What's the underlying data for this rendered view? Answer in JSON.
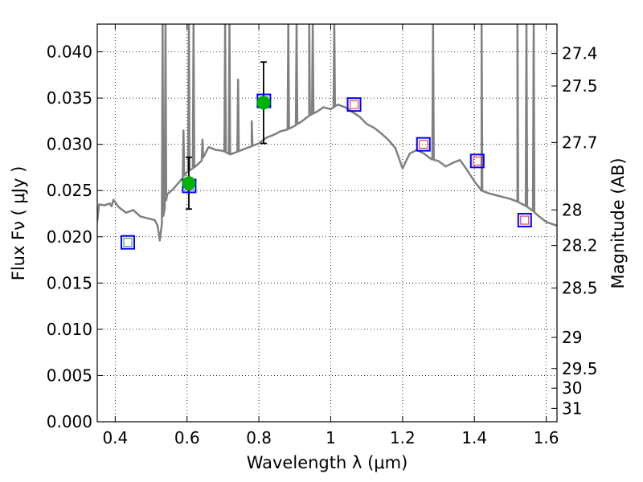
{
  "chart_data": {
    "type": "line",
    "xlabel": "Wavelength  λ (μm)",
    "ylabel": "Flux  Fν  ( μJy )",
    "y2label": "Magnitude (AB)",
    "xlim": [
      0.35,
      1.63
    ],
    "ylim": [
      0.0,
      0.043
    ],
    "grid": true,
    "x_ticks": [
      {
        "value": 0.4,
        "label": "0.4"
      },
      {
        "value": 0.6,
        "label": "0.6"
      },
      {
        "value": 0.8,
        "label": "0.8"
      },
      {
        "value": 1.0,
        "label": "1"
      },
      {
        "value": 1.2,
        "label": "1.2"
      },
      {
        "value": 1.4,
        "label": "1.4"
      },
      {
        "value": 1.6,
        "label": "1.6"
      }
    ],
    "y_ticks": [
      {
        "value": 0.0,
        "label": "0.000"
      },
      {
        "value": 0.005,
        "label": "0.005"
      },
      {
        "value": 0.01,
        "label": "0.010"
      },
      {
        "value": 0.015,
        "label": "0.015"
      },
      {
        "value": 0.02,
        "label": "0.020"
      },
      {
        "value": 0.025,
        "label": "0.025"
      },
      {
        "value": 0.03,
        "label": "0.030"
      },
      {
        "value": 0.035,
        "label": "0.035"
      },
      {
        "value": 0.04,
        "label": "0.040"
      }
    ],
    "y2_ticks": [
      {
        "value": 27.4,
        "label": "27.4"
      },
      {
        "value": 27.5,
        "label": "27.5"
      },
      {
        "value": 27.7,
        "label": "27.7"
      },
      {
        "value": 28.0,
        "label": "28"
      },
      {
        "value": 28.2,
        "label": "28.2"
      },
      {
        "value": 28.5,
        "label": "28.5"
      },
      {
        "value": 29.0,
        "label": "29"
      },
      {
        "value": 29.5,
        "label": "29.5"
      },
      {
        "value": 30.0,
        "label": "30"
      },
      {
        "value": 31.0,
        "label": "31"
      }
    ],
    "series": [
      {
        "role": "sed-model",
        "style": "line",
        "color": "#808080",
        "continuum": [
          [
            0.35,
            0.0217
          ],
          [
            0.355,
            0.0235
          ],
          [
            0.37,
            0.0234
          ],
          [
            0.385,
            0.0236
          ],
          [
            0.39,
            0.0233
          ],
          [
            0.395,
            0.024
          ],
          [
            0.41,
            0.0232
          ],
          [
            0.43,
            0.0226
          ],
          [
            0.45,
            0.0229
          ],
          [
            0.47,
            0.0222
          ],
          [
            0.49,
            0.022
          ],
          [
            0.51,
            0.0218
          ],
          [
            0.518,
            0.0212
          ],
          [
            0.524,
            0.0196
          ],
          [
            0.53,
            0.0214
          ],
          [
            0.545,
            0.0246
          ],
          [
            0.56,
            0.0251
          ],
          [
            0.58,
            0.026
          ],
          [
            0.6,
            0.027
          ],
          [
            0.62,
            0.0275
          ],
          [
            0.64,
            0.0282
          ],
          [
            0.66,
            0.0297
          ],
          [
            0.68,
            0.0294
          ],
          [
            0.7,
            0.0293
          ],
          [
            0.72,
            0.0289
          ],
          [
            0.74,
            0.0292
          ],
          [
            0.76,
            0.0295
          ],
          [
            0.78,
            0.0298
          ],
          [
            0.8,
            0.0301
          ],
          [
            0.82,
            0.0307
          ],
          [
            0.84,
            0.031
          ],
          [
            0.86,
            0.0314
          ],
          [
            0.88,
            0.0316
          ],
          [
            0.9,
            0.032
          ],
          [
            0.92,
            0.0325
          ],
          [
            0.94,
            0.0331
          ],
          [
            0.96,
            0.0335
          ],
          [
            0.98,
            0.034
          ],
          [
            1.0,
            0.0338
          ],
          [
            1.02,
            0.0343
          ],
          [
            1.04,
            0.034
          ],
          [
            1.06,
            0.0335
          ],
          [
            1.08,
            0.033
          ],
          [
            1.1,
            0.0322
          ],
          [
            1.12,
            0.0318
          ],
          [
            1.14,
            0.0312
          ],
          [
            1.16,
            0.0305
          ],
          [
            1.18,
            0.0296
          ],
          [
            1.19,
            0.0285
          ],
          [
            1.2,
            0.0274
          ],
          [
            1.22,
            0.029
          ],
          [
            1.24,
            0.0294
          ],
          [
            1.26,
            0.029
          ],
          [
            1.28,
            0.0284
          ],
          [
            1.3,
            0.0282
          ],
          [
            1.32,
            0.0276
          ],
          [
            1.34,
            0.028
          ],
          [
            1.36,
            0.0283
          ],
          [
            1.38,
            0.0272
          ],
          [
            1.4,
            0.026
          ],
          [
            1.42,
            0.025
          ],
          [
            1.44,
            0.0247
          ],
          [
            1.46,
            0.0245
          ],
          [
            1.48,
            0.0243
          ],
          [
            1.5,
            0.0241
          ],
          [
            1.52,
            0.0238
          ],
          [
            1.54,
            0.0234
          ],
          [
            1.56,
            0.0229
          ],
          [
            1.58,
            0.0222
          ],
          [
            1.6,
            0.0216
          ],
          [
            1.63,
            0.0212
          ]
        ],
        "emission_lines": [
          {
            "x": 0.532,
            "peak": 0.043
          },
          {
            "x": 0.54,
            "peak": 0.043
          },
          {
            "x": 0.59,
            "peak": 0.0315
          },
          {
            "x": 0.605,
            "peak": 0.043
          },
          {
            "x": 0.618,
            "peak": 0.043
          },
          {
            "x": 0.643,
            "peak": 0.0305
          },
          {
            "x": 0.706,
            "peak": 0.043
          },
          {
            "x": 0.718,
            "peak": 0.043
          },
          {
            "x": 0.742,
            "peak": 0.037
          },
          {
            "x": 0.78,
            "peak": 0.0325
          },
          {
            "x": 0.882,
            "peak": 0.043
          },
          {
            "x": 0.905,
            "peak": 0.043
          },
          {
            "x": 0.94,
            "peak": 0.043
          },
          {
            "x": 0.95,
            "peak": 0.043
          },
          {
            "x": 1.01,
            "peak": 0.043
          },
          {
            "x": 1.285,
            "peak": 0.043
          },
          {
            "x": 1.42,
            "peak": 0.043
          },
          {
            "x": 1.52,
            "peak": 0.043
          },
          {
            "x": 1.545,
            "peak": 0.043
          },
          {
            "x": 1.565,
            "peak": 0.043
          }
        ]
      },
      {
        "role": "observed-photometry",
        "style": "circle",
        "color": "#00b200",
        "points": [
          {
            "x": 0.605,
            "y": 0.0258,
            "err": 0.0028
          },
          {
            "x": 0.813,
            "y": 0.0345,
            "err": 0.0044
          }
        ]
      },
      {
        "role": "model-photometry",
        "style": "square",
        "color": "#0000ff",
        "points": [
          {
            "x": 0.435,
            "y": 0.0194
          },
          {
            "x": 0.606,
            "y": 0.0255
          },
          {
            "x": 0.814,
            "y": 0.0347
          },
          {
            "x": 1.065,
            "y": 0.0343
          },
          {
            "x": 1.258,
            "y": 0.03
          },
          {
            "x": 1.408,
            "y": 0.0282
          },
          {
            "x": 1.54,
            "y": 0.0218
          }
        ]
      },
      {
        "role": "inner-markers",
        "style": "square",
        "points": [
          {
            "x": 0.435,
            "y": 0.0194,
            "color": "#2e8b57"
          },
          {
            "x": 0.606,
            "y": 0.0255,
            "color": "#2e8b57"
          },
          {
            "x": 0.814,
            "y": 0.0347,
            "color": "#2e8b57"
          },
          {
            "x": 1.065,
            "y": 0.0343,
            "color": "#e6194b"
          },
          {
            "x": 1.258,
            "y": 0.03,
            "color": "#e6194b"
          },
          {
            "x": 1.408,
            "y": 0.0282,
            "color": "#e6194b"
          },
          {
            "x": 1.54,
            "y": 0.0218,
            "color": "#e6194b"
          }
        ]
      }
    ]
  }
}
